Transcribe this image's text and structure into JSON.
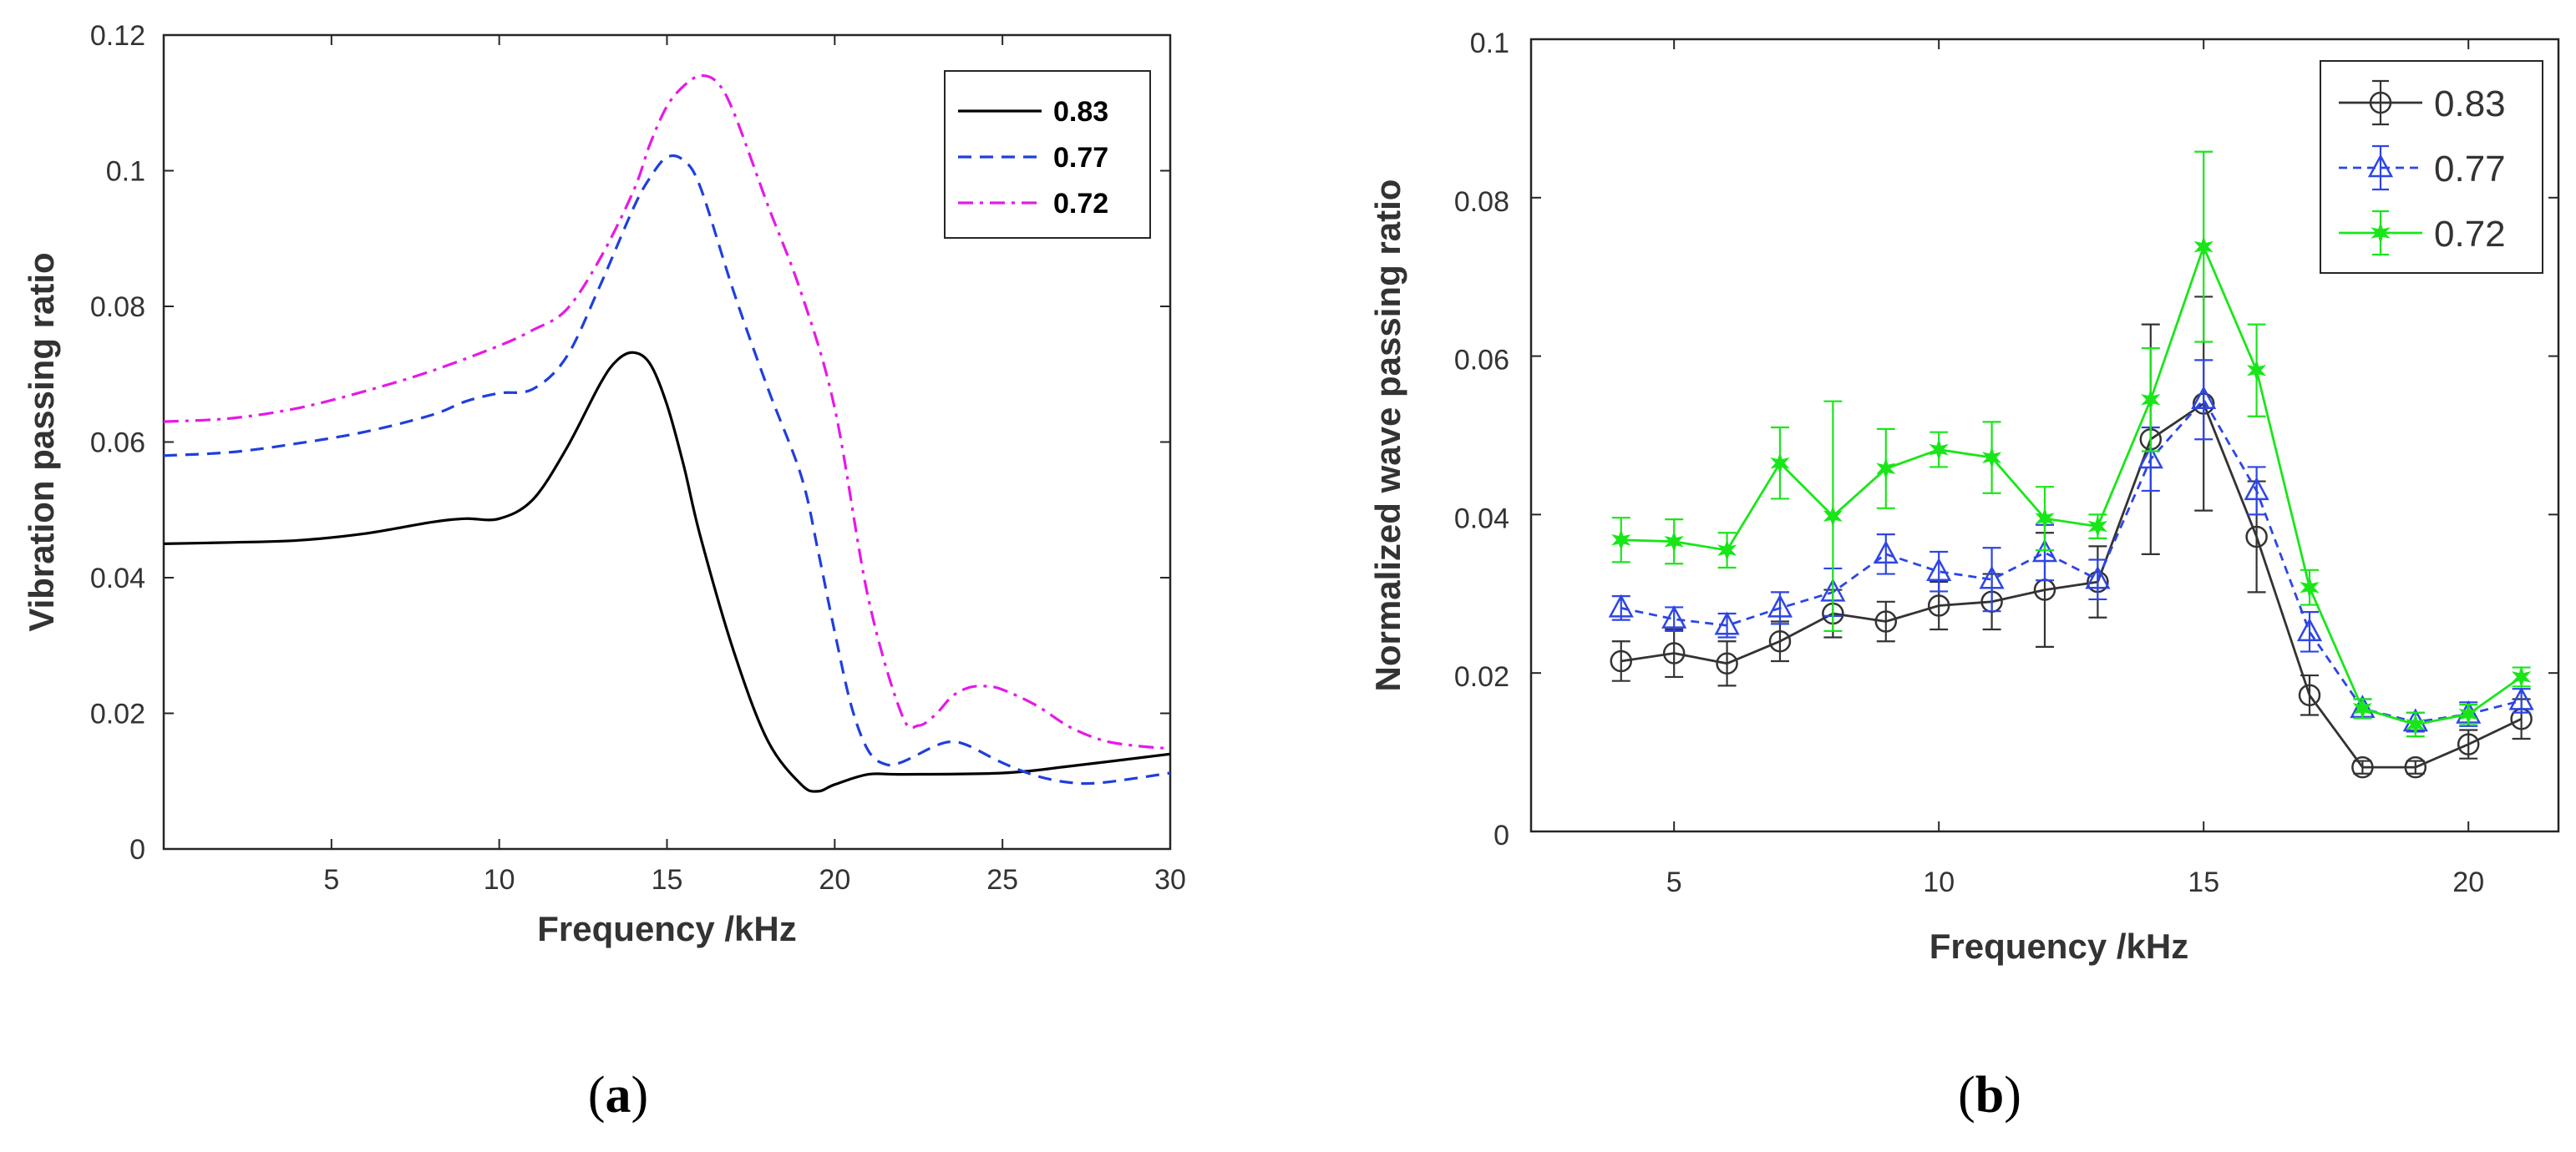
{
  "chart_data": [
    {
      "type": "line",
      "panel": "a",
      "panel_letter": "a",
      "title": "",
      "xlabel": "Frequency /kHz",
      "ylabel": "Vibration passing ratio",
      "xlim": [
        0,
        30
      ],
      "ylim": [
        0,
        0.12
      ],
      "xticks": [
        5,
        10,
        15,
        20,
        25,
        30
      ],
      "xtick_labels": [
        "5",
        "10",
        "15",
        "20",
        "25",
        "30"
      ],
      "yticks": [
        0,
        0.02,
        0.04,
        0.06,
        0.08,
        0.1,
        0.12
      ],
      "ytick_labels": [
        "0",
        "0.02",
        "0.04",
        "0.06",
        "0.08",
        "0.1",
        "0.12"
      ],
      "legend_position": "top-right",
      "series": [
        {
          "name": "0.83",
          "color": "#000000",
          "style": "solid",
          "x": [
            0,
            2,
            4,
            6,
            8,
            9,
            10,
            11,
            12,
            13,
            13.5,
            14,
            14.5,
            15,
            15.5,
            16,
            17,
            18,
            19,
            19.5,
            20,
            21,
            22,
            25,
            27,
            30
          ],
          "y": [
            0.045,
            0.0452,
            0.0455,
            0.0465,
            0.0482,
            0.0487,
            0.0487,
            0.0515,
            0.059,
            0.0685,
            0.072,
            0.0732,
            0.0715,
            0.0655,
            0.0565,
            0.046,
            0.029,
            0.016,
            0.0095,
            0.0085,
            0.0095,
            0.011,
            0.011,
            0.0112,
            0.0122,
            0.014
          ]
        },
        {
          "name": "0.77",
          "color": "#1f3fdc",
          "style": "dashed",
          "x": [
            0,
            2,
            4,
            6,
            8,
            9,
            10,
            11,
            12,
            13,
            14,
            14.5,
            15,
            15.5,
            16,
            17,
            18,
            19,
            19.5,
            20,
            20.5,
            21,
            21.5,
            22,
            23,
            23.5,
            24,
            25,
            26,
            27,
            28,
            30
          ],
          "y": [
            0.058,
            0.0585,
            0.0598,
            0.0615,
            0.064,
            0.066,
            0.0672,
            0.0678,
            0.0725,
            0.083,
            0.0945,
            0.099,
            0.102,
            0.1015,
            0.0975,
            0.082,
            0.068,
            0.055,
            0.044,
            0.032,
            0.021,
            0.0145,
            0.0125,
            0.0128,
            0.0152,
            0.0158,
            0.0152,
            0.0127,
            0.0108,
            0.0098,
            0.0098,
            0.0112
          ]
        },
        {
          "name": "0.72",
          "color": "#e619e6",
          "style": "dashdot",
          "x": [
            0,
            2,
            4,
            6,
            8,
            10,
            11,
            12,
            13,
            14,
            14.5,
            15,
            15.5,
            16,
            16.5,
            17,
            18,
            19,
            20,
            21,
            22,
            22.5,
            23,
            23.5,
            24,
            24.5,
            25,
            26,
            27,
            28,
            29,
            30
          ],
          "y": [
            0.063,
            0.0635,
            0.065,
            0.0675,
            0.0705,
            0.0742,
            0.0765,
            0.0795,
            0.087,
            0.097,
            0.104,
            0.1095,
            0.1125,
            0.114,
            0.113,
            0.1085,
            0.095,
            0.082,
            0.065,
            0.037,
            0.0198,
            0.0182,
            0.0198,
            0.0225,
            0.0238,
            0.024,
            0.0235,
            0.0212,
            0.018,
            0.016,
            0.0152,
            0.0148
          ]
        }
      ]
    },
    {
      "type": "line",
      "panel": "b",
      "panel_letter": "b",
      "title": "",
      "xlabel": "Frequency /kHz",
      "ylabel": "Normalized wave passing ratio",
      "xlim": [
        2.3,
        21.7
      ],
      "ylim": [
        0,
        0.1
      ],
      "xticks": [
        5,
        10,
        15,
        20
      ],
      "xtick_labels": [
        "5",
        "10",
        "15",
        "20"
      ],
      "yticks": [
        0,
        0.02,
        0.04,
        0.06,
        0.08,
        0.1
      ],
      "ytick_labels": [
        "0",
        "0.02",
        "0.04",
        "0.06",
        "0.08",
        "0.1"
      ],
      "legend_position": "top-right",
      "error_bars": true,
      "series": [
        {
          "name": "0.83",
          "color": "#333333",
          "marker": "circle",
          "x": [
            4,
            5,
            6,
            7,
            8,
            9,
            10,
            11,
            12,
            13,
            14,
            15,
            16,
            17,
            18,
            19,
            20,
            21
          ],
          "y": [
            0.0215,
            0.0225,
            0.0212,
            0.024,
            0.0275,
            0.0265,
            0.0285,
            0.029,
            0.0305,
            0.0315,
            0.0495,
            0.054,
            0.0372,
            0.0172,
            0.0081,
            0.0081,
            0.011,
            0.0142
          ],
          "err": [
            0.0025,
            0.003,
            0.0028,
            0.0025,
            0.003,
            0.0025,
            0.003,
            0.0035,
            0.0072,
            0.0045,
            0.0145,
            0.0135,
            0.007,
            0.0025,
            0.0008,
            0.0008,
            0.0018,
            0.0025
          ]
        },
        {
          "name": "0.77",
          "color": "#2d45e6",
          "marker": "triangle",
          "x": [
            4,
            5,
            6,
            7,
            8,
            9,
            10,
            11,
            12,
            13,
            14,
            15,
            16,
            17,
            18,
            19,
            20,
            21
          ],
          "y": [
            0.0282,
            0.0268,
            0.026,
            0.0282,
            0.0302,
            0.035,
            0.0328,
            0.0318,
            0.0352,
            0.0318,
            0.047,
            0.0545,
            0.043,
            0.0252,
            0.0155,
            0.0138,
            0.0148,
            0.0165
          ],
          "err": [
            0.0015,
            0.0015,
            0.0015,
            0.002,
            0.003,
            0.0025,
            0.0025,
            0.004,
            0.0035,
            0.0025,
            0.004,
            0.005,
            0.003,
            0.0025,
            0.0012,
            0.0012,
            0.0015,
            0.0015
          ]
        },
        {
          "name": "0.72",
          "color": "#19e619",
          "marker": "star",
          "x": [
            4,
            5,
            6,
            7,
            8,
            9,
            10,
            11,
            12,
            13,
            14,
            15,
            16,
            17,
            18,
            19,
            20,
            21
          ],
          "y": [
            0.0368,
            0.0366,
            0.0355,
            0.0465,
            0.0398,
            0.0458,
            0.0482,
            0.0472,
            0.0395,
            0.0385,
            0.0545,
            0.0738,
            0.0582,
            0.0308,
            0.0155,
            0.0135,
            0.0148,
            0.0195
          ],
          "err": [
            0.0028,
            0.0028,
            0.0022,
            0.0045,
            0.0145,
            0.005,
            0.0022,
            0.0045,
            0.004,
            0.0015,
            0.0065,
            0.012,
            0.0058,
            0.0022,
            0.0012,
            0.0015,
            0.0012,
            0.0012
          ]
        }
      ]
    }
  ]
}
